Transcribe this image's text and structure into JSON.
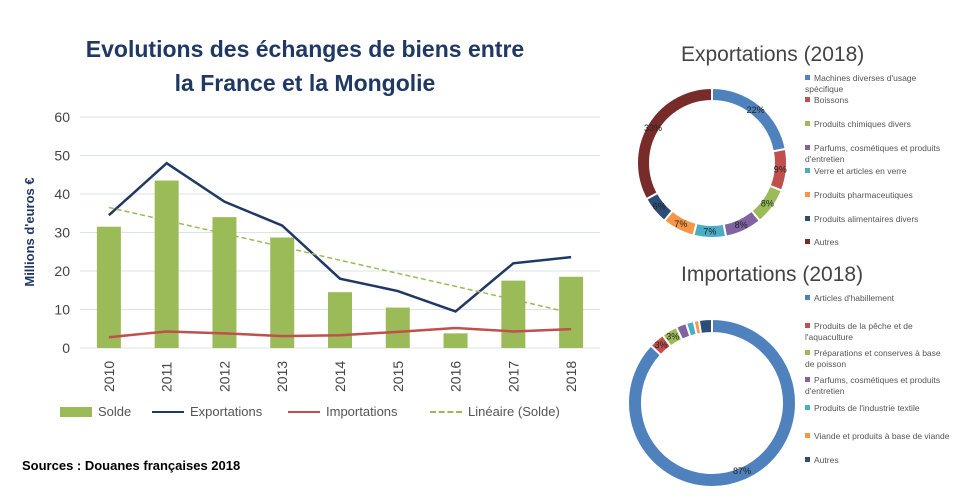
{
  "chart_data": [
    {
      "type": "bar",
      "title": "Evolutions des échanges de biens entre la France et la Mongolie",
      "title_lines": [
        "Evolutions des échanges de biens entre",
        "la France et la Mongolie"
      ],
      "ylabel": "Millions d'euros €",
      "xlabel": "",
      "ylim": [
        0,
        60
      ],
      "yticks": [
        "0",
        "10",
        "20",
        "30",
        "40",
        "50",
        "60"
      ],
      "grid": true,
      "legend_position": "bottom",
      "categories": [
        "2010",
        "2011",
        "2012",
        "2013",
        "2014",
        "2015",
        "2016",
        "2017",
        "2018"
      ],
      "series": [
        {
          "name": "Solde",
          "kind": "bar",
          "color": "#9bbb59",
          "values": [
            31.5,
            43.5,
            34,
            28.7,
            14.5,
            10.5,
            3.8,
            17.5,
            18.5
          ]
        },
        {
          "name": "Exportations",
          "kind": "line",
          "color": "#1f3864",
          "values": [
            34.5,
            48,
            38,
            31.8,
            18,
            14.8,
            9.5,
            22,
            23.6
          ]
        },
        {
          "name": "Importations",
          "kind": "line",
          "color": "#c0504d",
          "values": [
            2.8,
            4.3,
            3.8,
            3.1,
            3.3,
            4.2,
            5.2,
            4.3,
            4.9
          ]
        },
        {
          "name": "Linéaire (Solde)",
          "kind": "trendline",
          "color": "#9bbb59",
          "values": [
            36.5,
            33.1,
            29.7,
            26.3,
            22.8,
            19.4,
            16,
            12.6,
            9.1
          ]
        }
      ],
      "source": "Sources : Douanes françaises 2018"
    },
    {
      "type": "pie",
      "title": "Exportations (2018)",
      "legend_position": "right",
      "labels": [
        "Machines diverses d'usage spécifique",
        "Boissons",
        "Produits chimiques divers",
        "Parfums, cosmétiques et produits d'entretien",
        "Verre et articles en verre",
        "Produits pharmaceutiques",
        "Produits alimentaires divers",
        "Autres"
      ],
      "values": [
        22,
        9,
        8,
        8,
        7,
        7,
        6,
        33
      ],
      "data_labels": [
        "22%",
        "9%",
        "8%",
        "8%",
        "7%",
        "7%",
        "6%",
        "33%"
      ],
      "colors": [
        "#4f81bd",
        "#c0504d",
        "#9bbb59",
        "#8064a2",
        "#4bacc6",
        "#f79646",
        "#2c4d75",
        "#772c2a"
      ]
    },
    {
      "type": "pie",
      "title": "Importations (2018)",
      "legend_position": "right",
      "labels": [
        "Articles d'habillement",
        "Produits de la pêche et de l'aquaculture",
        "Préparations et conserves à base de poisson",
        "Parfums, cosmétiques et produits d'entretien",
        "Produits de l'industrie textile",
        "Viande et produits à base de viande",
        "Autres"
      ],
      "values": [
        87,
        3,
        3,
        2,
        1.5,
        1,
        2.5
      ],
      "data_labels": [
        "87%",
        "3%",
        "3%",
        "",
        "",
        "",
        ""
      ],
      "colors": [
        "#4f81bd",
        "#c0504d",
        "#9bbb59",
        "#8064a2",
        "#4bacc6",
        "#f79646",
        "#2c4d75"
      ]
    }
  ]
}
